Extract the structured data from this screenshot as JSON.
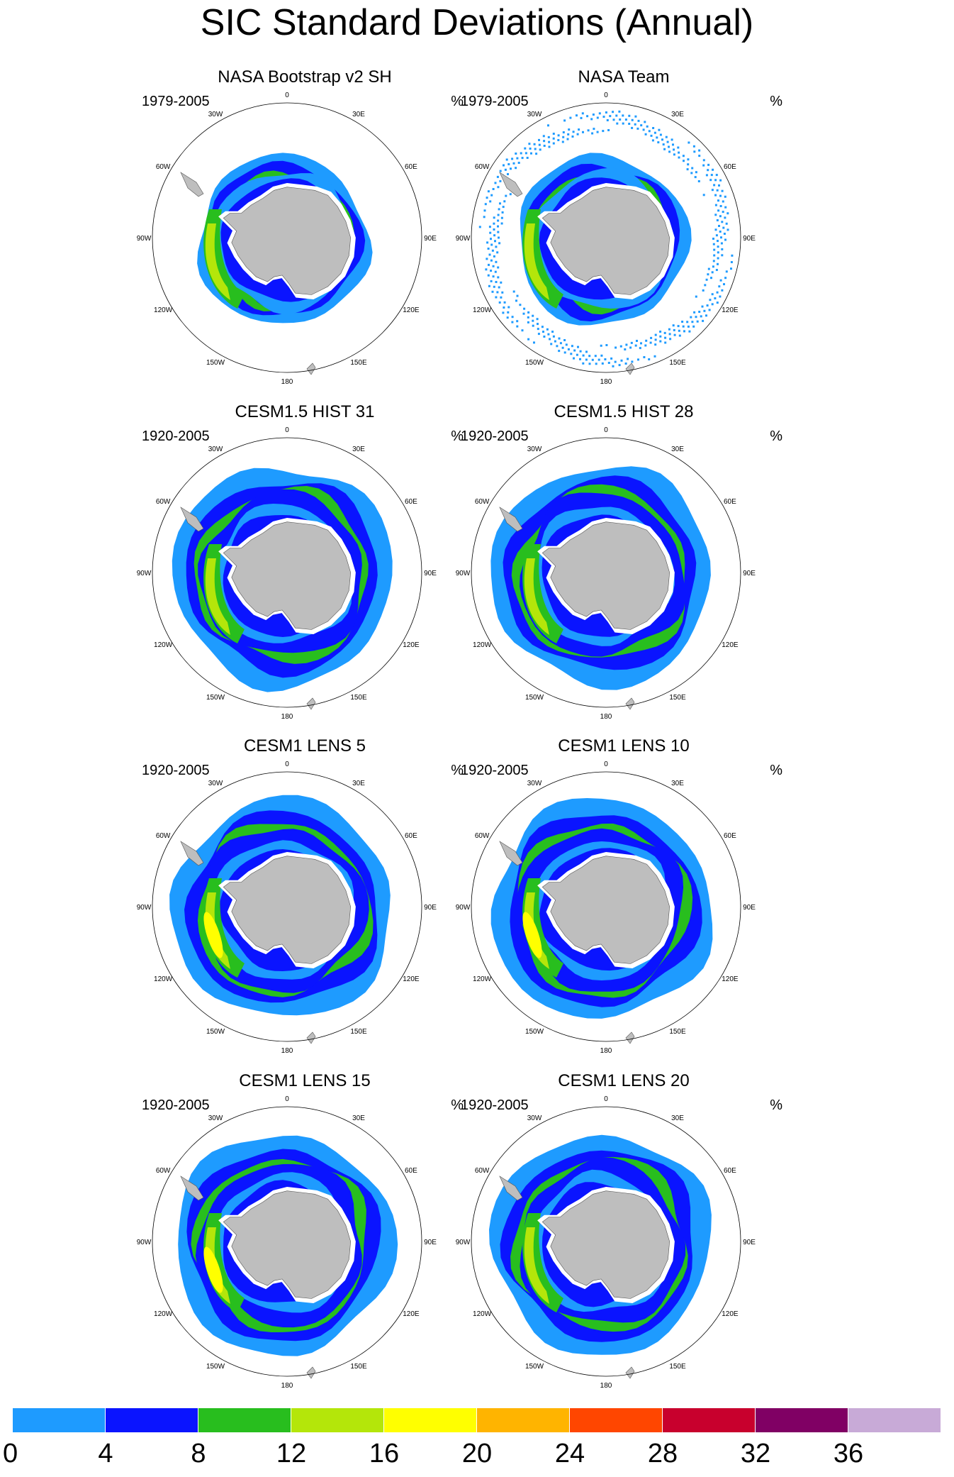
{
  "title": "SIC Standard Deviations (Annual)",
  "unit": "%",
  "longitude_labels": [
    "0",
    "30E",
    "60E",
    "90E",
    "120E",
    "150E",
    "180",
    "150W",
    "120W",
    "90W",
    "60W",
    "30W"
  ],
  "panels": [
    {
      "title": "NASA Bootstrap v2 SH",
      "period": "1979-2005",
      "style": "obs"
    },
    {
      "title": "NASA Team",
      "period": "1979-2005",
      "style": "obs-noisy"
    },
    {
      "title": "CESM1.5 HIST 31",
      "period": "1920-2005",
      "style": "model"
    },
    {
      "title": "CESM1.5 HIST 28",
      "period": "1920-2005",
      "style": "model"
    },
    {
      "title": "CESM1 LENS 5",
      "period": "1920-2005",
      "style": "model-strong"
    },
    {
      "title": "CESM1 LENS 10",
      "period": "1920-2005",
      "style": "model-strong"
    },
    {
      "title": "CESM1 LENS 15",
      "period": "1920-2005",
      "style": "model-strong"
    },
    {
      "title": "CESM1 LENS 20",
      "period": "1920-2005",
      "style": "model"
    }
  ],
  "colorbar": {
    "labels": [
      "0",
      "4",
      "8",
      "12",
      "16",
      "20",
      "24",
      "28",
      "32",
      "36"
    ],
    "colors": [
      "#1e9bff",
      "#0a14ff",
      "#28be1e",
      "#b4e60a",
      "#ffff00",
      "#ffb400",
      "#ff4600",
      "#c8002d",
      "#800064",
      "#c8aad7"
    ]
  },
  "land_color": "#bebebe"
}
